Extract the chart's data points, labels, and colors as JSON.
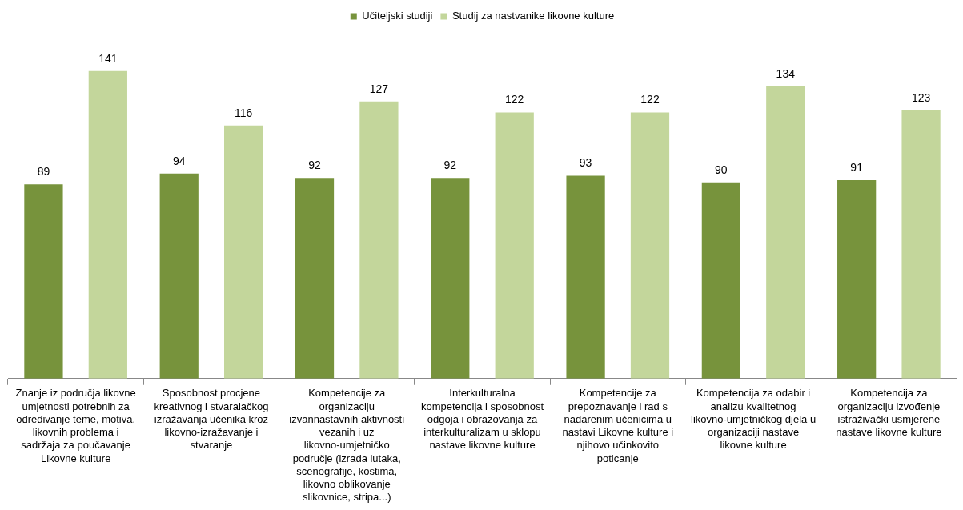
{
  "chart_data": {
    "type": "bar",
    "categories": [
      "Znanje iz područja likovne umjetnosti potrebnih za određivanje teme, motiva, likovnih problema i sadržaja za poučavanje Likovne kulture",
      "Sposobnost procjene kreativnog i stvaralačkog izražavanja učenika kroz likovno-izražavanje i stvaranje",
      "Kompetencije za organizaciju izvannastavnih aktivnosti vezanih i uz likovno-umjetničko područje (izrada lutaka, scenografije, kostima, likovno oblikovanje slikovnice, stripa...)",
      "Interkulturalna kompetencija i sposobnost odgoja i obrazovanja za interkulturalizam u sklopu nastave likovne kulture",
      "Kompetencije za prepoznavanje i rad s nadarenim učenicima u nastavi Likovne kulture i njihovo učinkovito poticanje",
      "Kompetencija za odabir i analizu kvalitetnog likovno-umjetničkog djela u organizaciji nastave likovne kulture",
      "Kompetencija za organizaciju izvođenje istraživački usmjerene nastave likovne kulture"
    ],
    "series": [
      {
        "name": "Učiteljski studiji",
        "color": "#77933c",
        "values": [
          89,
          94,
          92,
          92,
          93,
          90,
          91
        ]
      },
      {
        "name": "Studij za nastvanike likovne kulture",
        "color": "#c3d69b",
        "values": [
          141,
          116,
          127,
          122,
          122,
          134,
          123
        ]
      }
    ],
    "data_labels": true,
    "legend": "top",
    "grid": false
  }
}
